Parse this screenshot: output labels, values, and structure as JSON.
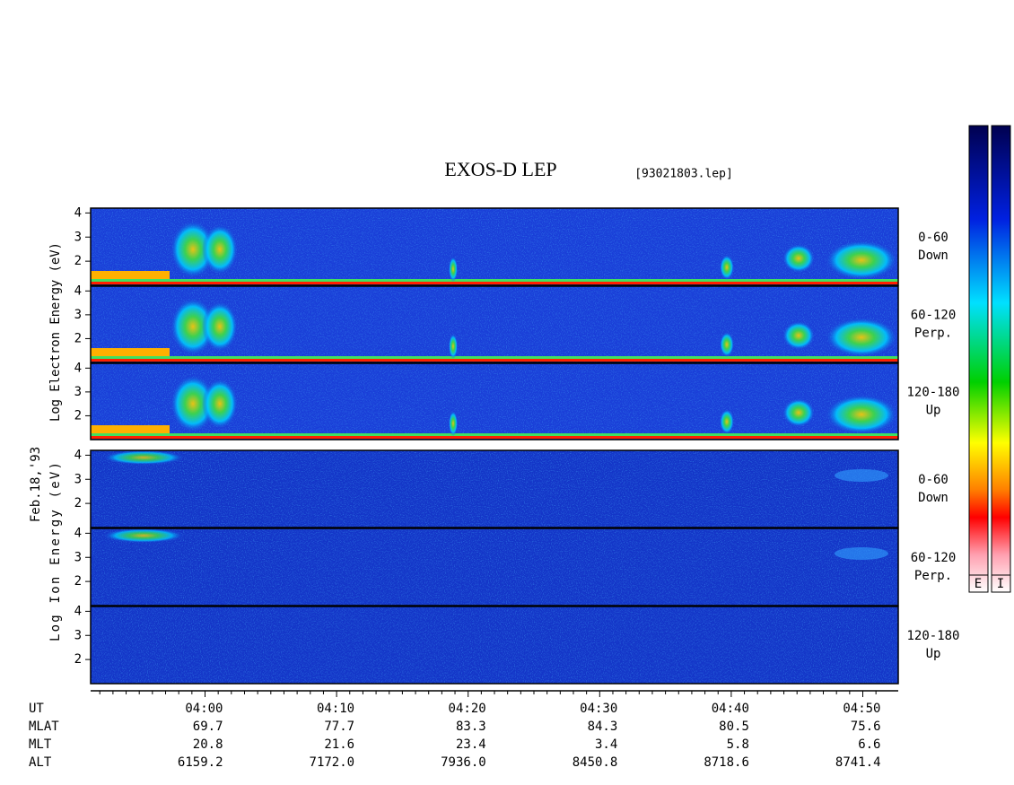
{
  "header": {
    "title": "EXOS-D LEP",
    "file": "[93021803.lep]"
  },
  "date": "Feb.18,'93",
  "electron": {
    "axis_label": "Log Electron Energy (eV)",
    "panels": [
      {
        "pitch": "0-60",
        "direction": "Down"
      },
      {
        "pitch": "60-120",
        "direction": "Perp."
      },
      {
        "pitch": "120-180",
        "direction": "Up"
      }
    ]
  },
  "ion": {
    "axis_label": "Log Ion Energy (eV)",
    "panels": [
      {
        "pitch": "0-60",
        "direction": "Down"
      },
      {
        "pitch": "60-120",
        "direction": "Perp."
      },
      {
        "pitch": "120-180",
        "direction": "Up"
      }
    ]
  },
  "energy_axis": {
    "ylim": [
      1,
      4.2
    ],
    "yticks": [
      2,
      3,
      4
    ]
  },
  "time_axis": {
    "label": "UT",
    "ticks": [
      "04:00",
      "04:10",
      "04:20",
      "04:30",
      "04:40",
      "04:50"
    ]
  },
  "orbit_table": [
    {
      "label": "MLAT",
      "values": [
        "69.7",
        "77.7",
        "83.3",
        "84.3",
        "80.5",
        "75.6"
      ]
    },
    {
      "label": "MLT",
      "values": [
        "20.8",
        "21.6",
        "23.4",
        "3.4",
        "5.8",
        "6.6"
      ]
    },
    {
      "label": "ALT",
      "values": [
        "6159.2",
        "7172.0",
        "7936.0",
        "8450.8",
        "8718.6",
        "8741.4"
      ]
    }
  ],
  "colorbars": [
    "E",
    "I"
  ]
}
